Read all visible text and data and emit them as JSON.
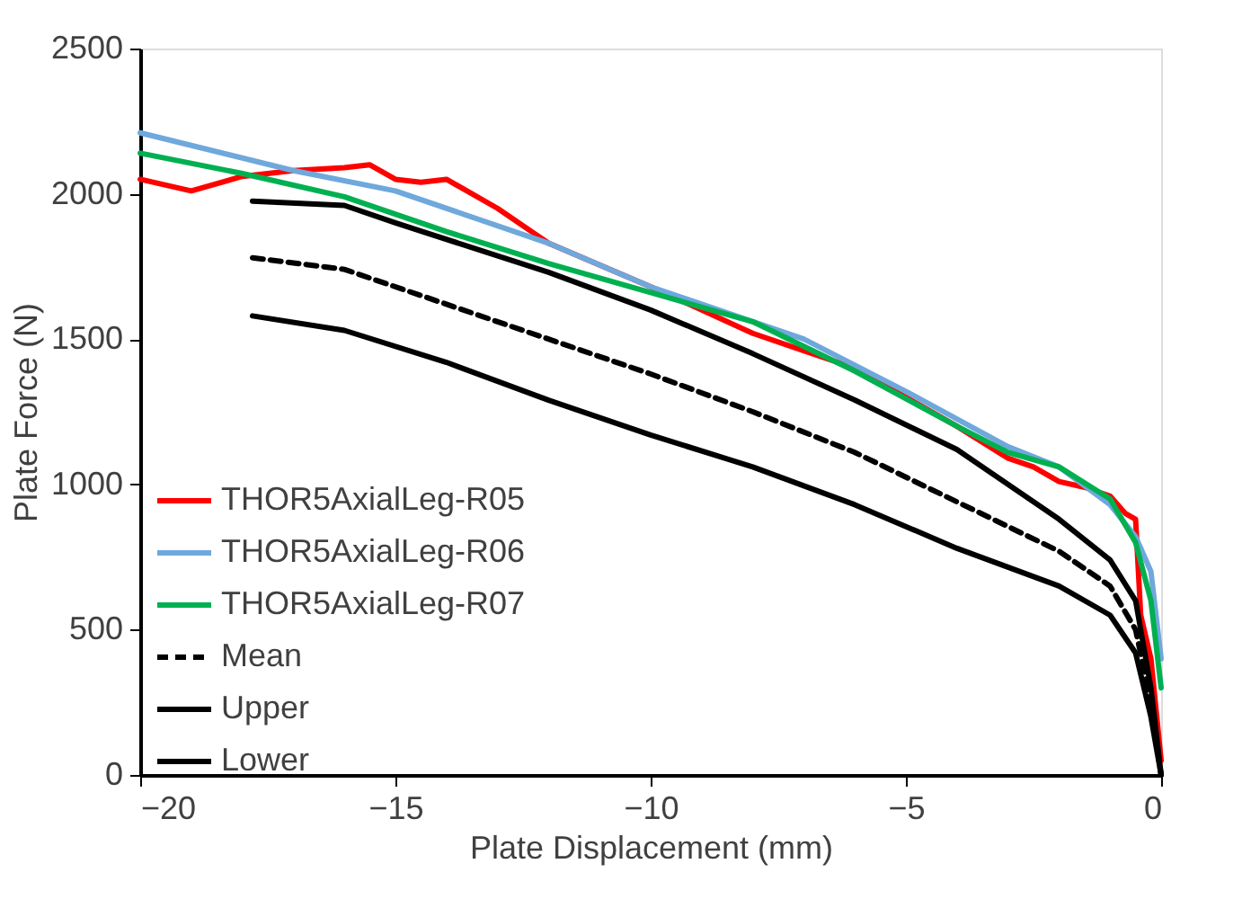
{
  "chart_data": {
    "type": "line",
    "xlabel": "Plate Displacement (mm)",
    "ylabel": "Plate Force (N)",
    "xlim": [
      -20,
      0
    ],
    "xticks": [
      -20,
      -15,
      -10,
      -5,
      0
    ],
    "ylim": [
      0,
      2500
    ],
    "yticks": [
      0,
      500,
      1000,
      1500,
      2000,
      2500
    ],
    "grid": false,
    "legend": "left",
    "line_style": "solid",
    "series": [
      {
        "name": "THOR5AxialLeg-R05",
        "color": "#ff0000",
        "x": [
          -20,
          -19,
          -18,
          -17,
          -16,
          -15.5,
          -15,
          -14.5,
          -14,
          -13,
          -12,
          -10,
          -8,
          -7,
          -6,
          -5,
          -4,
          -3,
          -2.5,
          -2,
          -1.5,
          -1,
          -0.7,
          -0.5,
          -0.4,
          -0.2,
          0
        ],
        "values": [
          2050,
          2010,
          2060,
          2080,
          2090,
          2100,
          2050,
          2040,
          2050,
          1950,
          1830,
          1680,
          1520,
          1460,
          1400,
          1300,
          1200,
          1090,
          1060,
          1010,
          990,
          960,
          900,
          880,
          550,
          400,
          50
        ]
      },
      {
        "name": "THOR5AxialLeg-R06",
        "color": "#6fa8dc",
        "x": [
          -20,
          -17,
          -15,
          -12,
          -10,
          -7,
          -5,
          -3,
          -2,
          -1,
          -0.5,
          -0.2,
          0
        ],
        "values": [
          2210,
          2080,
          2010,
          1830,
          1680,
          1500,
          1320,
          1130,
          1060,
          930,
          820,
          700,
          400
        ]
      },
      {
        "name": "THOR5AxialLeg-R07",
        "color": "#00b050",
        "x": [
          -20,
          -18,
          -16,
          -14,
          -12,
          -10,
          -8,
          -6,
          -4,
          -3,
          -2,
          -1,
          -0.5,
          -0.2,
          0
        ],
        "values": [
          2140,
          2070,
          1990,
          1870,
          1760,
          1660,
          1560,
          1390,
          1200,
          1110,
          1060,
          950,
          800,
          600,
          300
        ]
      },
      {
        "name": "Mean",
        "color": "#000000",
        "line_style": "dashed",
        "x": [
          -17.8,
          -16,
          -14,
          -12,
          -10,
          -8,
          -6,
          -4,
          -2,
          -1,
          -0.5,
          -0.2,
          0
        ],
        "values": [
          1780,
          1740,
          1620,
          1500,
          1380,
          1250,
          1110,
          940,
          770,
          650,
          500,
          250,
          0
        ]
      },
      {
        "name": "Upper",
        "color": "#000000",
        "x": [
          -17.8,
          -16,
          -15,
          -12,
          -10,
          -8,
          -6,
          -4,
          -2,
          -1,
          -0.5,
          -0.2,
          0
        ],
        "values": [
          1975,
          1960,
          1900,
          1730,
          1600,
          1450,
          1290,
          1120,
          880,
          740,
          600,
          300,
          0
        ]
      },
      {
        "name": "Lower",
        "color": "#000000",
        "x": [
          -17.8,
          -16,
          -14,
          -12,
          -10,
          -8,
          -6,
          -4,
          -2,
          -1,
          -0.5,
          -0.2,
          0
        ],
        "values": [
          1580,
          1530,
          1420,
          1290,
          1170,
          1060,
          930,
          780,
          650,
          550,
          420,
          200,
          0
        ]
      }
    ]
  }
}
